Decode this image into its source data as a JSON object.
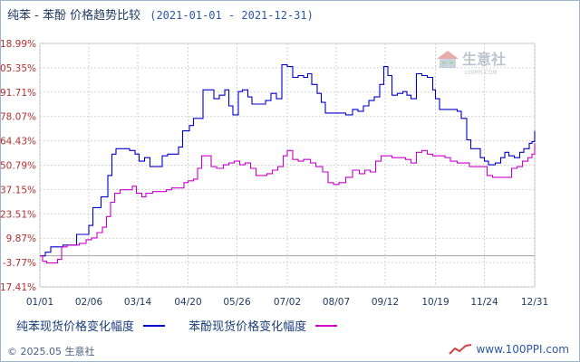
{
  "header": {
    "title": "纯苯 - 苯酚 价格趋势比较",
    "date_range": "(2021-01-01 - 2021-12-31)"
  },
  "legend": {
    "items": [
      {
        "label": "纯苯现货价格变化幅度",
        "color": "#0000cc"
      },
      {
        "label": "苯酚现货价格变化幅度",
        "color": "#cc00cc"
      }
    ]
  },
  "footer": {
    "copyright": "© 2025.05 生意社",
    "site": "www.100PPI.com"
  },
  "watermark": {
    "text": "生意社",
    "sub": "100PPI.COM"
  },
  "colors": {
    "benzene": "#0000cc",
    "phenol": "#cc00cc",
    "grid": "#c8c8c8",
    "axis_text": "#b03030"
  },
  "chart_data": {
    "type": "line",
    "title": "纯苯 - 苯酚 价格趋势比较",
    "xlabel": "",
    "ylabel": "",
    "y_tick_labels": [
      "118.99%",
      "105.35%",
      "91.71%",
      "78.07%",
      "64.43%",
      "50.79%",
      "37.15%",
      "23.51%",
      "9.87%",
      "-3.77%",
      "-17.41%"
    ],
    "y_ticks": [
      118.99,
      105.35,
      91.71,
      78.07,
      64.43,
      50.79,
      37.15,
      23.51,
      9.87,
      -3.77,
      -17.41
    ],
    "ylim": [
      -17.41,
      118.99
    ],
    "x_tick_labels": [
      "01/01",
      "02/06",
      "03/14",
      "04/20",
      "05/26",
      "07/02",
      "08/07",
      "09/12",
      "10/19",
      "11/24",
      "12/31"
    ],
    "x_ticks": [
      "2021-01-01",
      "2021-02-06",
      "2021-03-14",
      "2021-04-20",
      "2021-05-26",
      "2021-07-02",
      "2021-08-07",
      "2021-09-12",
      "2021-10-19",
      "2021-11-24",
      "2021-12-31"
    ],
    "xlim": [
      "2021-01-01",
      "2021-12-31"
    ],
    "zero_line": 0,
    "grid": true,
    "legend_position": "bottom",
    "series": [
      {
        "name": "纯苯现货价格变化幅度",
        "color": "#0000cc",
        "points": [
          [
            "2021-01-01",
            0
          ],
          [
            "2021-01-05",
            2
          ],
          [
            "2021-01-09",
            5
          ],
          [
            "2021-01-14",
            5
          ],
          [
            "2021-01-18",
            6
          ],
          [
            "2021-01-23",
            6
          ],
          [
            "2021-01-28",
            12
          ],
          [
            "2021-02-02",
            12
          ],
          [
            "2021-02-06",
            17
          ],
          [
            "2021-02-09",
            27
          ],
          [
            "2021-02-13",
            27
          ],
          [
            "2021-02-15",
            33
          ],
          [
            "2021-02-18",
            33
          ],
          [
            "2021-02-20",
            45
          ],
          [
            "2021-02-23",
            57
          ],
          [
            "2021-02-26",
            60
          ],
          [
            "2021-03-03",
            60
          ],
          [
            "2021-03-08",
            59
          ],
          [
            "2021-03-12",
            57
          ],
          [
            "2021-03-15",
            53
          ],
          [
            "2021-03-19",
            55
          ],
          [
            "2021-03-23",
            50
          ],
          [
            "2021-03-26",
            50
          ],
          [
            "2021-04-01",
            56
          ],
          [
            "2021-04-05",
            57
          ],
          [
            "2021-04-09",
            57
          ],
          [
            "2021-04-13",
            61
          ],
          [
            "2021-04-16",
            70
          ],
          [
            "2021-04-21",
            73
          ],
          [
            "2021-04-24",
            77
          ],
          [
            "2021-04-28",
            77
          ],
          [
            "2021-05-01",
            93
          ],
          [
            "2021-05-06",
            93
          ],
          [
            "2021-05-09",
            88
          ],
          [
            "2021-05-13",
            90
          ],
          [
            "2021-05-17",
            93
          ],
          [
            "2021-05-20",
            84
          ],
          [
            "2021-05-23",
            79
          ],
          [
            "2021-05-27",
            92
          ],
          [
            "2021-05-30",
            93
          ],
          [
            "2021-06-03",
            89
          ],
          [
            "2021-06-06",
            85
          ],
          [
            "2021-06-11",
            85
          ],
          [
            "2021-06-16",
            87
          ],
          [
            "2021-06-20",
            91
          ],
          [
            "2021-06-24",
            88
          ],
          [
            "2021-06-28",
            107
          ],
          [
            "2021-07-02",
            106
          ],
          [
            "2021-07-06",
            100
          ],
          [
            "2021-07-10",
            101
          ],
          [
            "2021-07-14",
            100
          ],
          [
            "2021-07-17",
            102
          ],
          [
            "2021-07-20",
            96
          ],
          [
            "2021-07-24",
            91
          ],
          [
            "2021-07-27",
            86
          ],
          [
            "2021-07-30",
            80
          ],
          [
            "2021-08-04",
            80
          ],
          [
            "2021-08-09",
            80
          ],
          [
            "2021-08-14",
            79
          ],
          [
            "2021-08-19",
            82
          ],
          [
            "2021-08-23",
            81
          ],
          [
            "2021-08-27",
            84
          ],
          [
            "2021-08-31",
            87
          ],
          [
            "2021-09-04",
            89
          ],
          [
            "2021-09-08",
            96
          ],
          [
            "2021-09-11",
            106
          ],
          [
            "2021-09-14",
            101
          ],
          [
            "2021-09-17",
            90
          ],
          [
            "2021-09-21",
            91
          ],
          [
            "2021-09-25",
            92
          ],
          [
            "2021-09-28",
            90
          ],
          [
            "2021-10-01",
            88
          ],
          [
            "2021-10-05",
            102
          ],
          [
            "2021-10-09",
            101
          ],
          [
            "2021-10-13",
            100
          ],
          [
            "2021-10-17",
            93
          ],
          [
            "2021-10-19",
            88
          ],
          [
            "2021-10-22",
            82
          ],
          [
            "2021-10-27",
            82
          ],
          [
            "2021-11-04",
            81
          ],
          [
            "2021-11-07",
            77
          ],
          [
            "2021-11-11",
            65
          ],
          [
            "2021-11-14",
            60
          ],
          [
            "2021-11-18",
            60
          ],
          [
            "2021-11-21",
            55
          ],
          [
            "2021-11-24",
            53
          ],
          [
            "2021-11-27",
            51
          ],
          [
            "2021-12-02",
            52
          ],
          [
            "2021-12-06",
            55
          ],
          [
            "2021-12-09",
            58
          ],
          [
            "2021-12-12",
            56
          ],
          [
            "2021-12-16",
            55
          ],
          [
            "2021-12-20",
            58
          ],
          [
            "2021-12-23",
            60
          ],
          [
            "2021-12-27",
            63
          ],
          [
            "2021-12-29",
            64
          ],
          [
            "2021-12-31",
            70
          ]
        ]
      },
      {
        "name": "苯酚现货价格变化幅度",
        "color": "#cc00cc",
        "points": [
          [
            "2021-01-01",
            0
          ],
          [
            "2021-01-03",
            -3
          ],
          [
            "2021-01-06",
            -4
          ],
          [
            "2021-01-10",
            -4
          ],
          [
            "2021-01-14",
            -2
          ],
          [
            "2021-01-17",
            5
          ],
          [
            "2021-01-21",
            6
          ],
          [
            "2021-01-25",
            6
          ],
          [
            "2021-01-30",
            7
          ],
          [
            "2021-02-04",
            9
          ],
          [
            "2021-02-08",
            10
          ],
          [
            "2021-02-12",
            13
          ],
          [
            "2021-02-16",
            16
          ],
          [
            "2021-02-19",
            22
          ],
          [
            "2021-02-22",
            30
          ],
          [
            "2021-02-25",
            35
          ],
          [
            "2021-03-01",
            37
          ],
          [
            "2021-03-05",
            37
          ],
          [
            "2021-03-10",
            39
          ],
          [
            "2021-03-13",
            35
          ],
          [
            "2021-03-17",
            33
          ],
          [
            "2021-03-20",
            35
          ],
          [
            "2021-03-25",
            36
          ],
          [
            "2021-03-30",
            36
          ],
          [
            "2021-04-04",
            37
          ],
          [
            "2021-04-08",
            38
          ],
          [
            "2021-04-12",
            38
          ],
          [
            "2021-04-17",
            41
          ],
          [
            "2021-04-20",
            42
          ],
          [
            "2021-04-24",
            43
          ],
          [
            "2021-04-27",
            49
          ],
          [
            "2021-04-30",
            56
          ],
          [
            "2021-05-04",
            56
          ],
          [
            "2021-05-07",
            50
          ],
          [
            "2021-05-11",
            49
          ],
          [
            "2021-05-16",
            51
          ],
          [
            "2021-05-20",
            52
          ],
          [
            "2021-05-24",
            53
          ],
          [
            "2021-05-28",
            51
          ],
          [
            "2021-06-01",
            52
          ],
          [
            "2021-06-05",
            49
          ],
          [
            "2021-06-09",
            45
          ],
          [
            "2021-06-13",
            45
          ],
          [
            "2021-06-17",
            46
          ],
          [
            "2021-06-21",
            48
          ],
          [
            "2021-06-25",
            50
          ],
          [
            "2021-06-29",
            56
          ],
          [
            "2021-07-02",
            59
          ],
          [
            "2021-07-06",
            54
          ],
          [
            "2021-07-10",
            53
          ],
          [
            "2021-07-14",
            54
          ],
          [
            "2021-07-19",
            52
          ],
          [
            "2021-07-23",
            50
          ],
          [
            "2021-07-28",
            47
          ],
          [
            "2021-08-01",
            41
          ],
          [
            "2021-08-05",
            40
          ],
          [
            "2021-08-09",
            41
          ],
          [
            "2021-08-14",
            44
          ],
          [
            "2021-08-19",
            48
          ],
          [
            "2021-08-24",
            46
          ],
          [
            "2021-08-28",
            48
          ],
          [
            "2021-09-01",
            47
          ],
          [
            "2021-09-05",
            53
          ],
          [
            "2021-09-09",
            56
          ],
          [
            "2021-09-13",
            56
          ],
          [
            "2021-09-17",
            55
          ],
          [
            "2021-09-22",
            55
          ],
          [
            "2021-09-27",
            54
          ],
          [
            "2021-10-01",
            52
          ],
          [
            "2021-10-05",
            58
          ],
          [
            "2021-10-09",
            59
          ],
          [
            "2021-10-13",
            57
          ],
          [
            "2021-10-17",
            56
          ],
          [
            "2021-10-21",
            56
          ],
          [
            "2021-10-26",
            55
          ],
          [
            "2021-10-30",
            53
          ],
          [
            "2021-11-04",
            52
          ],
          [
            "2021-11-08",
            52
          ],
          [
            "2021-11-13",
            50
          ],
          [
            "2021-11-18",
            50
          ],
          [
            "2021-11-22",
            50
          ],
          [
            "2021-11-26",
            45
          ],
          [
            "2021-11-30",
            44
          ],
          [
            "2021-12-05",
            44
          ],
          [
            "2021-12-10",
            44
          ],
          [
            "2021-12-14",
            49
          ],
          [
            "2021-12-18",
            50
          ],
          [
            "2021-12-22",
            53
          ],
          [
            "2021-12-26",
            55
          ],
          [
            "2021-12-29",
            57
          ],
          [
            "2021-12-31",
            63
          ]
        ]
      }
    ]
  }
}
